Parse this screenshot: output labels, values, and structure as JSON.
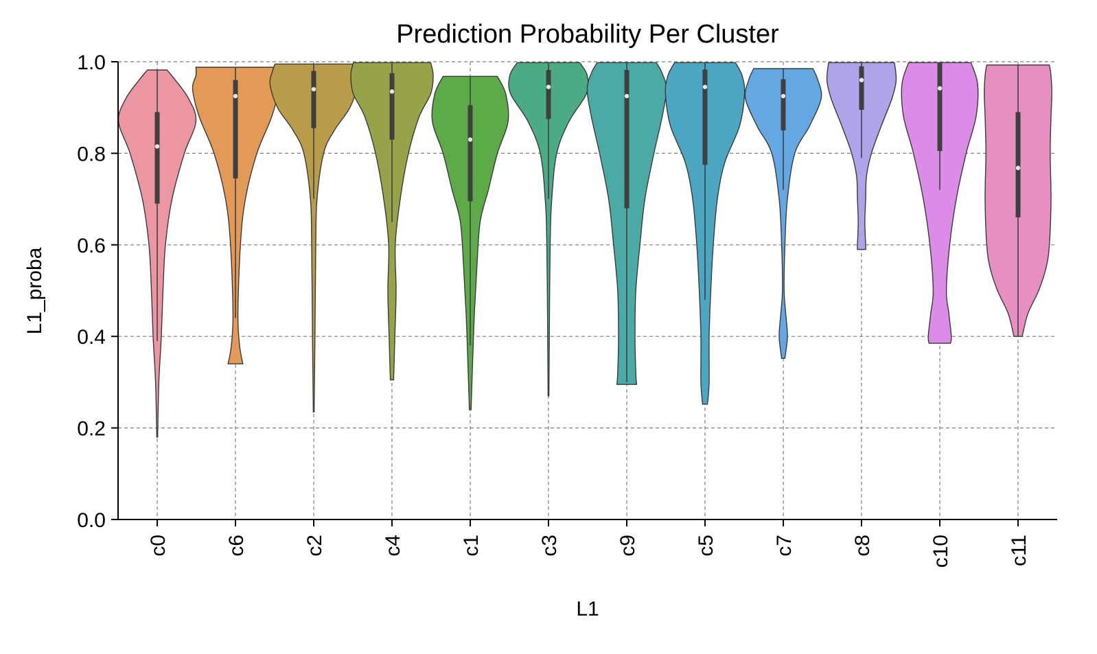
{
  "chart_data": {
    "type": "violin",
    "title": "Prediction Probability Per Cluster",
    "xlabel": "L1",
    "ylabel": "L1_proba",
    "ylim": [
      0,
      1
    ],
    "yticks": [
      "0.0",
      "0.2",
      "0.4",
      "0.6",
      "0.8",
      "1.0"
    ],
    "grid": true,
    "categories": [
      "c0",
      "c6",
      "c2",
      "c4",
      "c1",
      "c3",
      "c9",
      "c5",
      "c7",
      "c8",
      "c10",
      "c11"
    ],
    "series": [
      {
        "category": "c0",
        "color": "#ec96a1",
        "min": 0.18,
        "max": 0.982,
        "q1": 0.69,
        "median": 0.815,
        "q3": 0.89,
        "whisker_low": 0.39,
        "whisker_high": 0.982,
        "density": [
          [
            0.18,
            0.005
          ],
          [
            0.3,
            0.02
          ],
          [
            0.4,
            0.05
          ],
          [
            0.5,
            0.07
          ],
          [
            0.6,
            0.1
          ],
          [
            0.7,
            0.18
          ],
          [
            0.8,
            0.33
          ],
          [
            0.87,
            0.47
          ],
          [
            0.92,
            0.38
          ],
          [
            0.96,
            0.22
          ],
          [
            0.982,
            0.12
          ]
        ]
      },
      {
        "category": "c6",
        "color": "#e49a57",
        "min": 0.34,
        "max": 0.988,
        "q1": 0.745,
        "median": 0.925,
        "q3": 0.96,
        "whisker_low": 0.44,
        "whisker_high": 0.988,
        "density": [
          [
            0.34,
            0.09
          ],
          [
            0.38,
            0.05
          ],
          [
            0.45,
            0.03
          ],
          [
            0.6,
            0.06
          ],
          [
            0.7,
            0.12
          ],
          [
            0.8,
            0.26
          ],
          [
            0.88,
            0.44
          ],
          [
            0.94,
            0.52
          ],
          [
            0.97,
            0.48
          ],
          [
            0.988,
            0.48
          ]
        ]
      },
      {
        "category": "c2",
        "color": "#b89c4a",
        "min": 0.235,
        "max": 0.995,
        "q1": 0.855,
        "median": 0.94,
        "q3": 0.98,
        "whisker_low": 0.7,
        "whisker_high": 0.995,
        "density": [
          [
            0.235,
            0.005
          ],
          [
            0.4,
            0.015
          ],
          [
            0.6,
            0.025
          ],
          [
            0.7,
            0.04
          ],
          [
            0.8,
            0.12
          ],
          [
            0.85,
            0.25
          ],
          [
            0.9,
            0.44
          ],
          [
            0.95,
            0.53
          ],
          [
            0.98,
            0.5
          ],
          [
            0.995,
            0.47
          ]
        ]
      },
      {
        "category": "c4",
        "color": "#98a248",
        "min": 0.305,
        "max": 0.998,
        "q1": 0.83,
        "median": 0.935,
        "q3": 0.975,
        "whisker_low": 0.65,
        "whisker_high": 0.998,
        "density": [
          [
            0.305,
            0.02
          ],
          [
            0.4,
            0.035
          ],
          [
            0.5,
            0.05
          ],
          [
            0.6,
            0.04
          ],
          [
            0.7,
            0.1
          ],
          [
            0.8,
            0.2
          ],
          [
            0.88,
            0.33
          ],
          [
            0.93,
            0.47
          ],
          [
            0.97,
            0.5
          ],
          [
            0.998,
            0.47
          ]
        ]
      },
      {
        "category": "c1",
        "color": "#5daa48",
        "min": 0.24,
        "max": 0.968,
        "q1": 0.695,
        "median": 0.83,
        "q3": 0.905,
        "whisker_low": 0.38,
        "whisker_high": 0.968,
        "density": [
          [
            0.24,
            0.01
          ],
          [
            0.35,
            0.03
          ],
          [
            0.45,
            0.05
          ],
          [
            0.55,
            0.08
          ],
          [
            0.65,
            0.12
          ],
          [
            0.72,
            0.22
          ],
          [
            0.8,
            0.33
          ],
          [
            0.87,
            0.46
          ],
          [
            0.93,
            0.43
          ],
          [
            0.968,
            0.33
          ]
        ]
      },
      {
        "category": "c3",
        "color": "#4bab84",
        "min": 0.27,
        "max": 0.998,
        "q1": 0.875,
        "median": 0.945,
        "q3": 0.982,
        "whisker_low": 0.7,
        "whisker_high": 0.998,
        "density": [
          [
            0.27,
            0.005
          ],
          [
            0.4,
            0.01
          ],
          [
            0.6,
            0.02
          ],
          [
            0.7,
            0.04
          ],
          [
            0.8,
            0.1
          ],
          [
            0.87,
            0.25
          ],
          [
            0.93,
            0.46
          ],
          [
            0.97,
            0.47
          ],
          [
            0.998,
            0.38
          ]
        ]
      },
      {
        "category": "c9",
        "color": "#4aaaa6",
        "min": 0.295,
        "max": 0.998,
        "q1": 0.68,
        "median": 0.925,
        "q3": 0.982,
        "whisker_low": 0.3,
        "whisker_high": 0.998,
        "density": [
          [
            0.295,
            0.12
          ],
          [
            0.32,
            0.11
          ],
          [
            0.4,
            0.1
          ],
          [
            0.5,
            0.11
          ],
          [
            0.6,
            0.16
          ],
          [
            0.7,
            0.22
          ],
          [
            0.8,
            0.33
          ],
          [
            0.88,
            0.43
          ],
          [
            0.94,
            0.48
          ],
          [
            0.975,
            0.43
          ],
          [
            0.998,
            0.36
          ]
        ]
      },
      {
        "category": "c5",
        "color": "#4aa6c1",
        "min": 0.252,
        "max": 0.998,
        "q1": 0.775,
        "median": 0.945,
        "q3": 0.983,
        "whisker_low": 0.48,
        "whisker_high": 0.998,
        "density": [
          [
            0.252,
            0.03
          ],
          [
            0.3,
            0.05
          ],
          [
            0.4,
            0.05
          ],
          [
            0.5,
            0.07
          ],
          [
            0.6,
            0.1
          ],
          [
            0.7,
            0.15
          ],
          [
            0.78,
            0.24
          ],
          [
            0.86,
            0.42
          ],
          [
            0.93,
            0.48
          ],
          [
            0.97,
            0.45
          ],
          [
            0.998,
            0.37
          ]
        ]
      },
      {
        "category": "c7",
        "color": "#63a8e2",
        "min": 0.352,
        "max": 0.985,
        "q1": 0.85,
        "median": 0.925,
        "q3": 0.962,
        "whisker_low": 0.72,
        "whisker_high": 0.985,
        "density": [
          [
            0.352,
            0.02
          ],
          [
            0.4,
            0.05
          ],
          [
            0.45,
            0.03
          ],
          [
            0.5,
            0.01
          ],
          [
            0.6,
            0.02
          ],
          [
            0.7,
            0.05
          ],
          [
            0.8,
            0.14
          ],
          [
            0.86,
            0.32
          ],
          [
            0.92,
            0.46
          ],
          [
            0.96,
            0.42
          ],
          [
            0.985,
            0.36
          ]
        ]
      },
      {
        "category": "c8",
        "color": "#b1a3ea",
        "min": 0.59,
        "max": 0.998,
        "q1": 0.895,
        "median": 0.96,
        "q3": 0.99,
        "whisker_low": 0.79,
        "whisker_high": 0.998,
        "density": [
          [
            0.59,
            0.05
          ],
          [
            0.6,
            0.05
          ],
          [
            0.65,
            0.04
          ],
          [
            0.7,
            0.05
          ],
          [
            0.75,
            0.06
          ],
          [
            0.8,
            0.12
          ],
          [
            0.86,
            0.24
          ],
          [
            0.92,
            0.37
          ],
          [
            0.96,
            0.42
          ],
          [
            0.998,
            0.4
          ]
        ]
      },
      {
        "category": "c10",
        "color": "#dd8be9",
        "min": 0.385,
        "max": 0.998,
        "q1": 0.805,
        "median": 0.942,
        "q3": 0.998,
        "whisker_low": 0.72,
        "whisker_high": 0.998,
        "density": [
          [
            0.385,
            0.13
          ],
          [
            0.4,
            0.14
          ],
          [
            0.45,
            0.11
          ],
          [
            0.5,
            0.08
          ],
          [
            0.6,
            0.12
          ],
          [
            0.7,
            0.2
          ],
          [
            0.8,
            0.32
          ],
          [
            0.88,
            0.44
          ],
          [
            0.95,
            0.46
          ],
          [
            0.998,
            0.38
          ]
        ]
      },
      {
        "category": "c11",
        "color": "#e88fc2",
        "min": 0.4,
        "max": 0.993,
        "q1": 0.66,
        "median": 0.768,
        "q3": 0.89,
        "whisker_low": 0.4,
        "whisker_high": 0.993,
        "density": [
          [
            0.4,
            0.05
          ],
          [
            0.45,
            0.12
          ],
          [
            0.5,
            0.25
          ],
          [
            0.55,
            0.34
          ],
          [
            0.6,
            0.38
          ],
          [
            0.7,
            0.4
          ],
          [
            0.8,
            0.39
          ],
          [
            0.88,
            0.4
          ],
          [
            0.93,
            0.41
          ],
          [
            0.97,
            0.4
          ],
          [
            0.993,
            0.38
          ]
        ]
      }
    ]
  }
}
